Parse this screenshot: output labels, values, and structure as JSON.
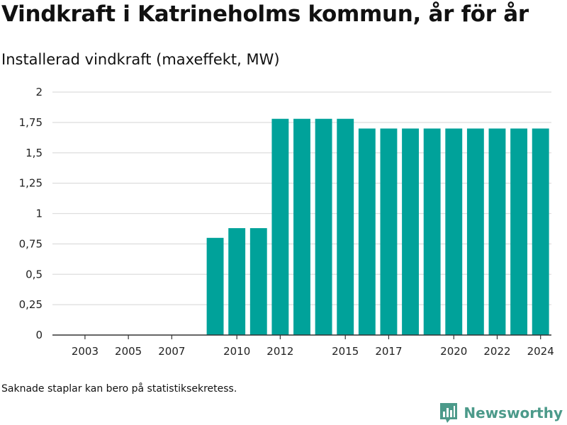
{
  "title": "Vindkraft i Katrineholms kommun, år för år",
  "subtitle": "Installerad vindkraft (maxeffekt, MW)",
  "footnote": "Saknade staplar kan bero på statistiksekretess.",
  "brand": {
    "name": "Newsworthy",
    "color": "#4c9a8a",
    "icon": "bar-chart-logo-icon"
  },
  "colors": {
    "bar": "#00a29a",
    "grid": "#dddddd",
    "axis": "#333333"
  },
  "chart_data": {
    "type": "bar",
    "title": "Vindkraft i Katrineholms kommun, år för år",
    "subtitle": "Installerad vindkraft (maxeffekt, MW)",
    "xlabel": "",
    "ylabel": "",
    "categories": [
      "2002",
      "2003",
      "2004",
      "2005",
      "2006",
      "2007",
      "2008",
      "2009",
      "2010",
      "2011",
      "2012",
      "2013",
      "2014",
      "2015",
      "2016",
      "2017",
      "2018",
      "2019",
      "2020",
      "2021",
      "2022",
      "2023",
      "2024"
    ],
    "values": [
      0,
      0,
      0,
      0,
      0,
      0,
      0,
      0.8,
      0.88,
      0.88,
      1.78,
      1.78,
      1.78,
      1.78,
      1.7,
      1.7,
      1.7,
      1.7,
      1.7,
      1.7,
      1.7,
      1.7,
      1.7
    ],
    "ylim": [
      0,
      2
    ],
    "y_ticks": [
      "0",
      "0,25",
      "0,5",
      "0,75",
      "1",
      "1,25",
      "1,5",
      "1,75",
      "2"
    ],
    "y_tick_values": [
      0,
      0.25,
      0.5,
      0.75,
      1,
      1.25,
      1.5,
      1.75,
      2
    ],
    "x_tick_labels": [
      "2003",
      "2005",
      "2007",
      "2010",
      "2012",
      "2015",
      "2017",
      "2020",
      "2022",
      "2024"
    ],
    "grid": true,
    "legend": "none"
  }
}
